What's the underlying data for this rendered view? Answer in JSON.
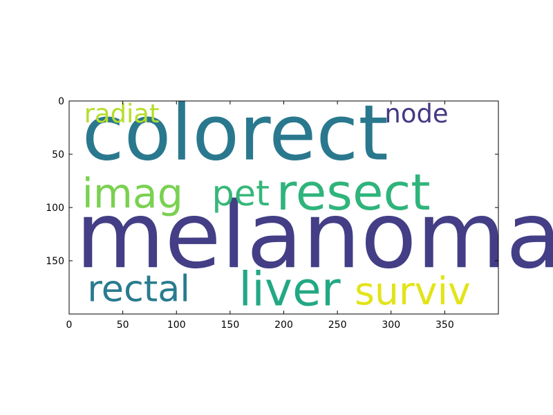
{
  "chart_data": {
    "type": "wordcloud",
    "title": "",
    "xlabel": "",
    "ylabel": "",
    "xlim": [
      0,
      400
    ],
    "ylim": [
      200,
      0
    ],
    "x_ticks": [
      0,
      50,
      100,
      150,
      200,
      250,
      300,
      350
    ],
    "y_ticks": [
      0,
      50,
      100,
      150
    ],
    "grid": false,
    "colormap": "viridis",
    "words": [
      {
        "text": "colorect",
        "x": 12,
        "y": 55,
        "size": 72,
        "color": "#2a788e"
      },
      {
        "text": "melanoma",
        "x": 6,
        "y": 156,
        "size": 86,
        "color": "#433e85"
      },
      {
        "text": "radiat",
        "x": 14,
        "y": 20,
        "size": 24,
        "color": "#b5de2b"
      },
      {
        "text": "node",
        "x": 294,
        "y": 20,
        "size": 24,
        "color": "#443983"
      },
      {
        "text": "imag",
        "x": 12,
        "y": 100,
        "size": 38,
        "color": "#7ad151"
      },
      {
        "text": "pet",
        "x": 133,
        "y": 98,
        "size": 33,
        "color": "#35b779"
      },
      {
        "text": "resect",
        "x": 193,
        "y": 102,
        "size": 47,
        "color": "#2fb47c"
      },
      {
        "text": "rectal",
        "x": 17,
        "y": 188,
        "size": 34,
        "color": "#297b8e"
      },
      {
        "text": "liver",
        "x": 158,
        "y": 192,
        "size": 44,
        "color": "#22a884"
      },
      {
        "text": "surviv",
        "x": 266,
        "y": 191,
        "size": 36,
        "color": "#e2e418"
      }
    ]
  }
}
